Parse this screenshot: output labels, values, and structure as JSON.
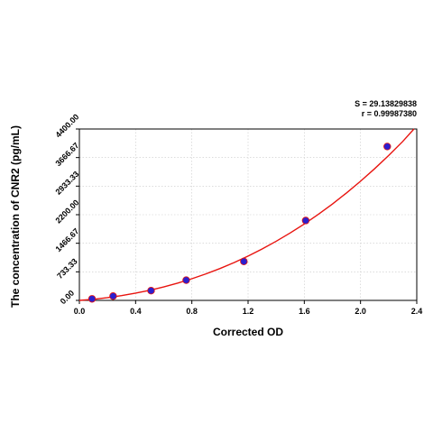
{
  "chart_data": {
    "type": "scatter",
    "title": "",
    "xlabel": "Corrected OD",
    "ylabel": "The concentration of CNR2 (pg/mL)",
    "xlim": [
      0.0,
      2.4
    ],
    "ylim": [
      0.0,
      4400.0
    ],
    "x_ticks": [
      "0.0",
      "0.4",
      "0.8",
      "1.2",
      "1.6",
      "2.0",
      "2.4"
    ],
    "y_ticks": [
      "0.00",
      "733.33",
      "1466.67",
      "2200.00",
      "2933.33",
      "3666.67",
      "4400.00"
    ],
    "grid": true,
    "stats": {
      "s": "S = 29.13829838",
      "r": "r = 0.99987380"
    },
    "points": {
      "x": [
        0.09,
        0.24,
        0.51,
        0.76,
        1.17,
        1.61,
        2.19
      ],
      "y": [
        40,
        110,
        250,
        520,
        1000,
        2050,
        3950
      ]
    },
    "fit": {
      "x": [
        0.0,
        0.1,
        0.2,
        0.3,
        0.4,
        0.5,
        0.6,
        0.7,
        0.8,
        0.9,
        1.0,
        1.1,
        1.2,
        1.3,
        1.4,
        1.5,
        1.6,
        1.7,
        1.8,
        1.9,
        2.0,
        2.1,
        2.2,
        2.3,
        2.38
      ],
      "y": [
        0,
        28,
        70,
        122,
        186,
        260,
        346,
        444,
        556,
        680,
        818,
        970,
        1138,
        1320,
        1518,
        1732,
        1962,
        2210,
        2475,
        2758,
        3060,
        3380,
        3720,
        4080,
        4400
      ]
    },
    "colors": {
      "fit_line": "#e8140f",
      "point_fill": "#2b1fcf",
      "axis": "#000000"
    }
  }
}
